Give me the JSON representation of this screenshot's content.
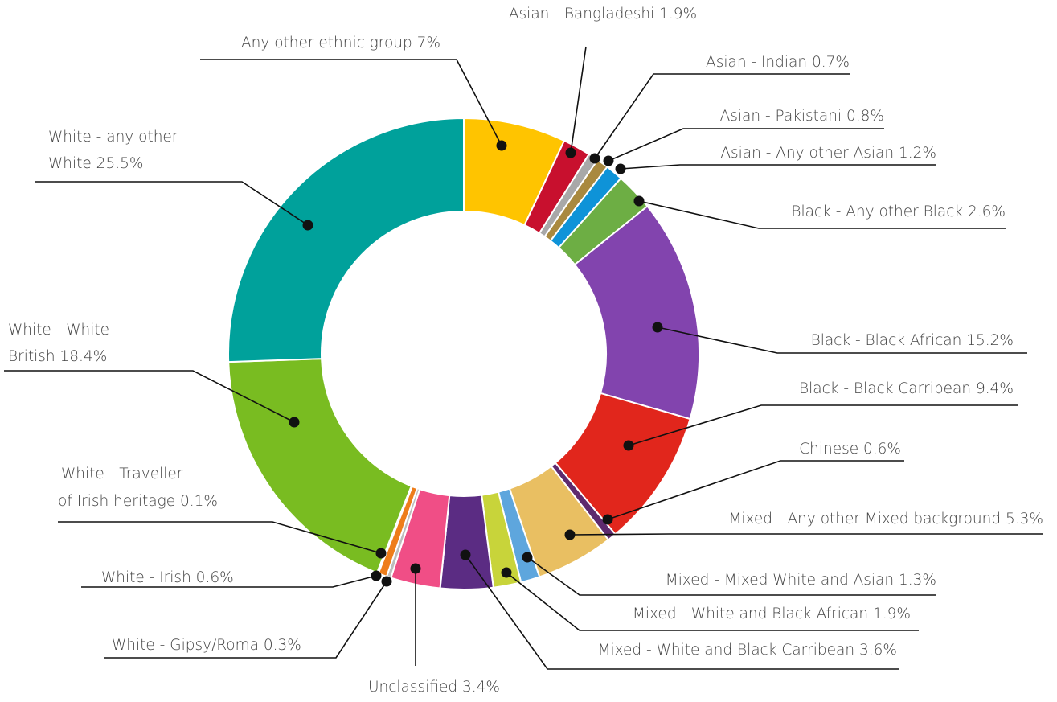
{
  "chart_data": {
    "type": "donut",
    "title": "",
    "series": [
      {
        "label": "Any other ethnic group 7%",
        "value": 7.0,
        "color": "#FFC400"
      },
      {
        "label": "Asian - Bangladeshi 1.9%",
        "value": 1.9,
        "color": "#C8102E"
      },
      {
        "label": "Asian - Indian  0.7%",
        "value": 0.7,
        "color": "#A8A8A8"
      },
      {
        "label": "Asian - Pakistani 0.8%",
        "value": 0.8,
        "color": "#A9893F"
      },
      {
        "label": "Asian - Any other Asian  1.2%",
        "value": 1.2,
        "color": "#0E93D8"
      },
      {
        "label": "Black - Any other Black  2.6%",
        "value": 2.6,
        "color": "#6DAE44"
      },
      {
        "label": "Black - Black African  15.2%",
        "value": 15.2,
        "color": "#8244AE"
      },
      {
        "label": "Black - Black Carribean  9.4%",
        "value": 9.4,
        "color": "#E1261C"
      },
      {
        "label": "Chinese 0.6%",
        "value": 0.6,
        "color": "#5E2A6E"
      },
      {
        "label": "Mixed - Any other Mixed background  5.3%",
        "value": 5.3,
        "color": "#E9BF62"
      },
      {
        "label": "Mixed - Mixed White and Asian  1.3%",
        "value": 1.3,
        "color": "#5EA6DD"
      },
      {
        "label": "Mixed - White and Black African  1.9%",
        "value": 1.9,
        "color": "#C8D43A"
      },
      {
        "label": "Mixed - White and Black Carribean  3.6%",
        "value": 3.6,
        "color": "#5B2C83"
      },
      {
        "label": "Unclassified 3.4%",
        "value": 3.4,
        "color": "#F04E86"
      },
      {
        "label": "White - Gipsy/Roma 0.3%",
        "value": 0.3,
        "color": "#BDBDBD"
      },
      {
        "label": "White - Irish 0.6%",
        "value": 0.6,
        "color": "#EE7D1A"
      },
      {
        "label": "White - Traveller of Irish heritage 0.1%",
        "label_lines": [
          "White - Traveller",
          "of Irish heritage 0.1%"
        ],
        "value": 0.1,
        "color": "#2F6B2F"
      },
      {
        "label": "White - White British 18.4%",
        "label_lines": [
          "White - White",
          "British 18.4%"
        ],
        "value": 18.4,
        "color": "#79BC21"
      },
      {
        "label": "White - any other White 25.5%",
        "label_lines": [
          "White - any other",
          "White 25.5%"
        ],
        "value": 25.5,
        "color": "#00A19B"
      }
    ],
    "legend": "none",
    "start_angle_deg": 0,
    "direction": "clockwise"
  }
}
